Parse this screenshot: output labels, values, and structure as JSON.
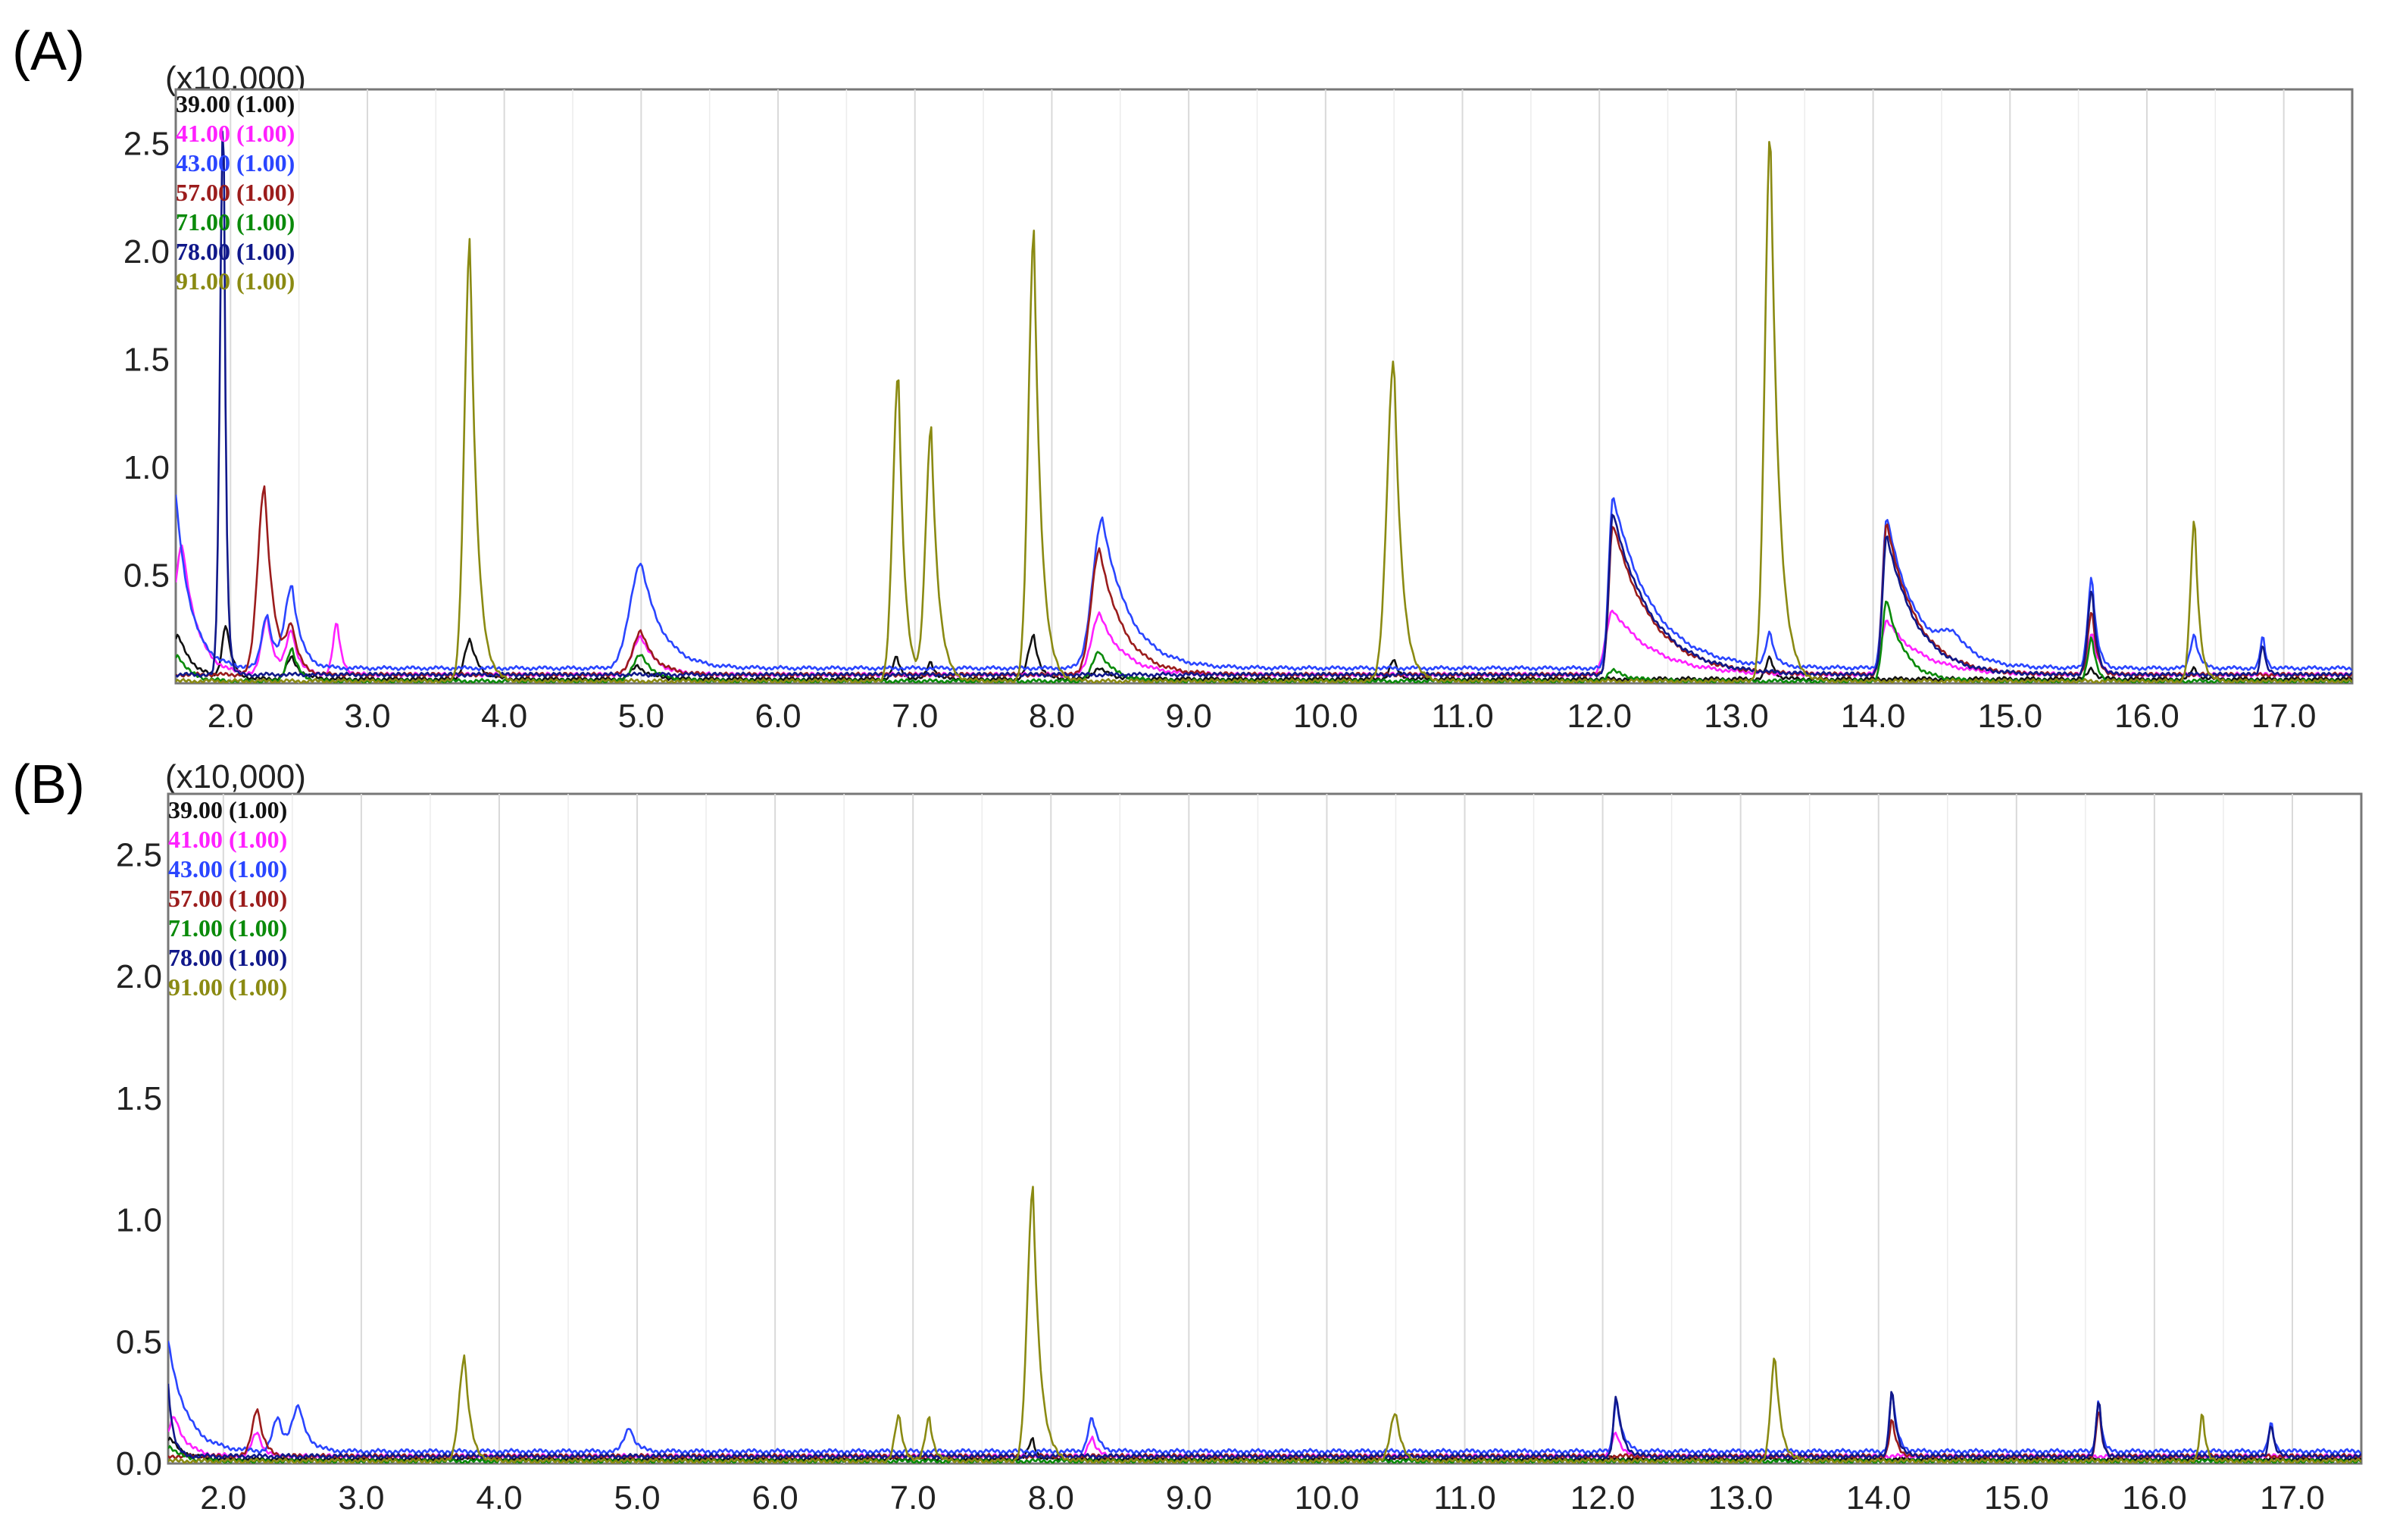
{
  "panels": [
    {
      "label": "(A)",
      "scale": "(x10,000)"
    },
    {
      "label": "(B)",
      "scale": "(x10,000)"
    }
  ],
  "colors": {
    "mz39": "#111111",
    "mz41": "#ff20ff",
    "mz43": "#2a45ff",
    "mz57": "#9b1c1c",
    "mz71": "#0a8a0a",
    "mz78": "#10188a",
    "mz91": "#8a8a12"
  },
  "chart_data": [
    {
      "type": "line",
      "title": "",
      "xlabel": "",
      "ylabel": "",
      "y_multiplier": "(x10,000)",
      "xlim": [
        1.6,
        17.5
      ],
      "ylim": [
        0,
        2.75
      ],
      "x_ticks": [
        "2.0",
        "3.0",
        "4.0",
        "5.0",
        "6.0",
        "7.0",
        "8.0",
        "9.0",
        "10.0",
        "11.0",
        "12.0",
        "13.0",
        "14.0",
        "15.0",
        "16.0",
        "17.0"
      ],
      "y_ticks": [
        "0.5",
        "1.0",
        "1.5",
        "2.0",
        "2.5"
      ],
      "grid": true,
      "legend_position": "top-left",
      "series": [
        {
          "name": "39.00 (1.00)",
          "color_key": "mz39",
          "baseline": 0.02,
          "peaks": [
            [
              1.62,
              0.2,
              0.05,
              0.25
            ],
            [
              1.97,
              0.25,
              0.03,
              0.1
            ],
            [
              2.45,
              0.1,
              0.04,
              0.15
            ],
            [
              3.75,
              0.18,
              0.04,
              0.15
            ],
            [
              4.98,
              0.06,
              0.05,
              0.2
            ],
            [
              6.87,
              0.1,
              0.03,
              0.08
            ],
            [
              7.12,
              0.08,
              0.03,
              0.08
            ],
            [
              7.87,
              0.2,
              0.04,
              0.1
            ],
            [
              8.35,
              0.05,
              0.05,
              0.2
            ],
            [
              10.5,
              0.09,
              0.03,
              0.08
            ],
            [
              13.25,
              0.1,
              0.03,
              0.08
            ],
            [
              15.6,
              0.05,
              0.03,
              0.08
            ],
            [
              16.35,
              0.05,
              0.03,
              0.08
            ]
          ]
        },
        {
          "name": "41.00 (1.00)",
          "color_key": "mz41",
          "baseline": 0.04,
          "peaks": [
            [
              1.65,
              0.6,
              0.06,
              0.25
            ],
            [
              2.27,
              0.27,
              0.04,
              0.12
            ],
            [
              2.45,
              0.2,
              0.04,
              0.12
            ],
            [
              2.78,
              0.24,
              0.03,
              0.08
            ],
            [
              5.0,
              0.18,
              0.06,
              0.25
            ],
            [
              8.35,
              0.28,
              0.06,
              0.4
            ],
            [
              12.1,
              0.3,
              0.05,
              0.7
            ],
            [
              14.1,
              0.25,
              0.04,
              0.6
            ],
            [
              15.6,
              0.2,
              0.03,
              0.1
            ]
          ]
        },
        {
          "name": "43.00 (1.00)",
          "color_key": "mz43",
          "baseline": 0.07,
          "peaks": [
            [
              1.6,
              0.8,
              0.06,
              0.25
            ],
            [
              2.27,
              0.25,
              0.04,
              0.12
            ],
            [
              2.45,
              0.38,
              0.05,
              0.15
            ],
            [
              5.0,
              0.49,
              0.08,
              0.35
            ],
            [
              8.37,
              0.69,
              0.07,
              0.45
            ],
            [
              12.1,
              0.8,
              0.03,
              0.65
            ],
            [
              13.25,
              0.16,
              0.03,
              0.08
            ],
            [
              14.1,
              0.7,
              0.03,
              0.5
            ],
            [
              14.6,
              0.1,
              0.1,
              0.3
            ],
            [
              15.6,
              0.43,
              0.03,
              0.08
            ],
            [
              16.35,
              0.16,
              0.03,
              0.08
            ],
            [
              16.85,
              0.15,
              0.02,
              0.05
            ]
          ]
        },
        {
          "name": "57.00 (1.00)",
          "color_key": "mz57",
          "baseline": 0.04,
          "peaks": [
            [
              2.25,
              0.88,
              0.05,
              0.15
            ],
            [
              2.45,
              0.2,
              0.04,
              0.12
            ],
            [
              5.0,
              0.2,
              0.06,
              0.25
            ],
            [
              8.35,
              0.58,
              0.06,
              0.4
            ],
            [
              12.1,
              0.7,
              0.03,
              0.65
            ],
            [
              14.1,
              0.7,
              0.03,
              0.5
            ],
            [
              15.6,
              0.3,
              0.03,
              0.08
            ]
          ]
        },
        {
          "name": "71.00 (1.00)",
          "color_key": "mz71",
          "baseline": 0.01,
          "peaks": [
            [
              1.62,
              0.12,
              0.05,
              0.2
            ],
            [
              2.45,
              0.15,
              0.04,
              0.12
            ],
            [
              5.0,
              0.12,
              0.06,
              0.25
            ],
            [
              8.35,
              0.14,
              0.05,
              0.25
            ],
            [
              12.1,
              0.05,
              0.04,
              0.3
            ],
            [
              14.1,
              0.38,
              0.03,
              0.3
            ],
            [
              15.6,
              0.2,
              0.03,
              0.08
            ]
          ]
        },
        {
          "name": "78.00 (1.00)",
          "color_key": "mz78",
          "baseline": 0.04,
          "peaks": [
            [
              1.95,
              2.7,
              0.025,
              0.04
            ],
            [
              12.1,
              0.75,
              0.03,
              0.65
            ],
            [
              14.1,
              0.65,
              0.03,
              0.5
            ],
            [
              15.6,
              0.4,
              0.03,
              0.08
            ],
            [
              16.85,
              0.15,
              0.02,
              0.05
            ]
          ]
        },
        {
          "name": "91.00 (1.00)",
          "color_key": "mz91",
          "baseline": 0.01,
          "peaks": [
            [
              3.75,
              2.05,
              0.04,
              0.12
            ],
            [
              6.88,
              1.43,
              0.04,
              0.1
            ],
            [
              7.12,
              1.17,
              0.04,
              0.12
            ],
            [
              7.87,
              2.08,
              0.04,
              0.12
            ],
            [
              10.5,
              1.5,
              0.05,
              0.13
            ],
            [
              13.25,
              2.55,
              0.04,
              0.14
            ],
            [
              16.35,
              0.76,
              0.03,
              0.08
            ]
          ]
        }
      ]
    },
    {
      "type": "line",
      "title": "",
      "xlabel": "",
      "ylabel": "",
      "y_multiplier": "(x10,000)",
      "xlim": [
        1.6,
        17.5
      ],
      "ylim": [
        0,
        2.75
      ],
      "x_ticks": [
        "2.0",
        "3.0",
        "4.0",
        "5.0",
        "6.0",
        "7.0",
        "8.0",
        "9.0",
        "10.0",
        "11.0",
        "12.0",
        "13.0",
        "14.0",
        "15.0",
        "16.0",
        "17.0"
      ],
      "y_ticks": [
        "0.0",
        "0.5",
        "1.0",
        "1.5",
        "2.0",
        "2.5"
      ],
      "grid": true,
      "legend_position": "top-left",
      "series": [
        {
          "name": "39.00 (1.00)",
          "color_key": "mz39",
          "baseline": 0.02,
          "peaks": [
            [
              1.62,
              0.08,
              0.05,
              0.2
            ],
            [
              7.87,
              0.08,
              0.03,
              0.06
            ]
          ]
        },
        {
          "name": "41.00 (1.00)",
          "color_key": "mz41",
          "baseline": 0.03,
          "peaks": [
            [
              1.65,
              0.16,
              0.05,
              0.2
            ],
            [
              2.25,
              0.1,
              0.04,
              0.1
            ],
            [
              8.3,
              0.08,
              0.03,
              0.08
            ],
            [
              12.1,
              0.1,
              0.03,
              0.1
            ]
          ]
        },
        {
          "name": "43.00 (1.00)",
          "color_key": "mz43",
          "baseline": 0.05,
          "peaks": [
            [
              1.6,
              0.45,
              0.06,
              0.3
            ],
            [
              2.4,
              0.14,
              0.04,
              0.1
            ],
            [
              2.55,
              0.18,
              0.05,
              0.15
            ],
            [
              4.95,
              0.1,
              0.04,
              0.1
            ],
            [
              8.3,
              0.14,
              0.03,
              0.1
            ],
            [
              12.1,
              0.22,
              0.02,
              0.1
            ],
            [
              14.1,
              0.25,
              0.02,
              0.08
            ],
            [
              15.6,
              0.22,
              0.02,
              0.05
            ],
            [
              16.85,
              0.12,
              0.02,
              0.05
            ]
          ]
        },
        {
          "name": "57.00 (1.00)",
          "color_key": "mz57",
          "baseline": 0.03,
          "peaks": [
            [
              2.25,
              0.2,
              0.04,
              0.1
            ],
            [
              14.1,
              0.15,
              0.02,
              0.08
            ],
            [
              15.6,
              0.2,
              0.02,
              0.05
            ]
          ]
        },
        {
          "name": "71.00 (1.00)",
          "color_key": "mz71",
          "baseline": 0.01,
          "peaks": [
            [
              1.62,
              0.06,
              0.05,
              0.2
            ]
          ]
        },
        {
          "name": "78.00 (1.00)",
          "color_key": "mz78",
          "baseline": 0.03,
          "peaks": [
            [
              1.6,
              0.3,
              0.03,
              0.08
            ],
            [
              12.1,
              0.25,
              0.02,
              0.1
            ],
            [
              14.1,
              0.28,
              0.02,
              0.08
            ],
            [
              15.6,
              0.24,
              0.02,
              0.05
            ],
            [
              16.85,
              0.14,
              0.02,
              0.05
            ]
          ]
        },
        {
          "name": "91.00 (1.00)",
          "color_key": "mz91",
          "baseline": 0.01,
          "peaks": [
            [
              3.75,
              0.43,
              0.04,
              0.1
            ],
            [
              6.9,
              0.19,
              0.03,
              0.08
            ],
            [
              7.12,
              0.18,
              0.03,
              0.08
            ],
            [
              7.87,
              1.12,
              0.04,
              0.12
            ],
            [
              10.5,
              0.2,
              0.04,
              0.1
            ],
            [
              13.25,
              0.43,
              0.03,
              0.1
            ],
            [
              16.35,
              0.2,
              0.02,
              0.06
            ]
          ]
        }
      ]
    }
  ]
}
